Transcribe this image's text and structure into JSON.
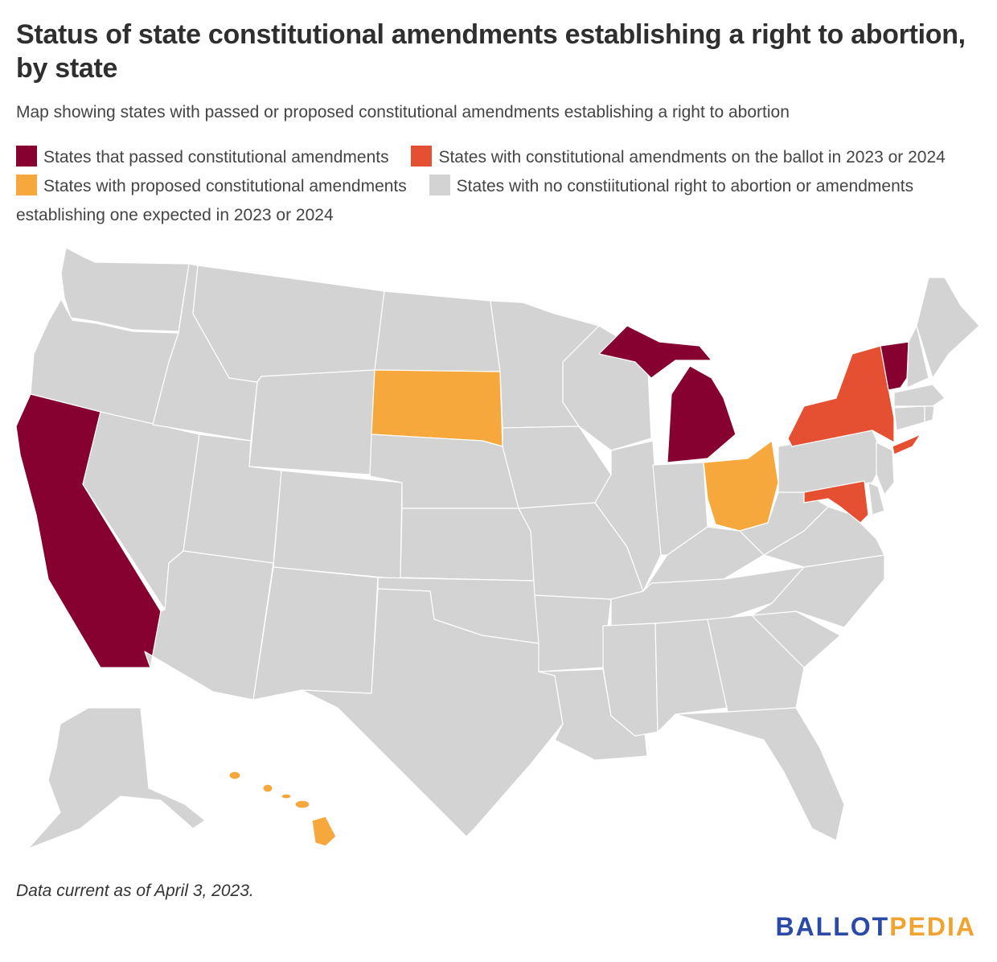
{
  "title": "Status of state constitutional amendments establishing a right to abortion, by state",
  "subtitle": "Map showing states with passed or proposed constitutional amendments establishing a right to abortion",
  "legend": [
    {
      "key": "passed",
      "label": "States that passed constitutional amendments",
      "color": "#860030"
    },
    {
      "key": "ballot",
      "label": "States with constitutional amendments on the ballot in 2023 or 2024",
      "color": "#e55032"
    },
    {
      "key": "proposed",
      "label": "States with proposed constitutional amendments",
      "color": "#f6a83c"
    },
    {
      "key": "none",
      "label": "States with no constiitutional right to abortion or amendments establishing one expected in 2023 or 2024",
      "color": "#d3d3d3"
    }
  ],
  "state_status": {
    "California": "passed",
    "Michigan": "passed",
    "Vermont": "passed",
    "New York": "ballot",
    "Maryland": "ballot",
    "South Dakota": "proposed",
    "Ohio": "proposed",
    "Hawaii": "proposed"
  },
  "footnote": "Data current as of April 3, 2023.",
  "logo": {
    "part1": "BALLOT",
    "part2": "PEDIA",
    "color1": "#2b4aa8",
    "color2": "#f0a330"
  }
}
